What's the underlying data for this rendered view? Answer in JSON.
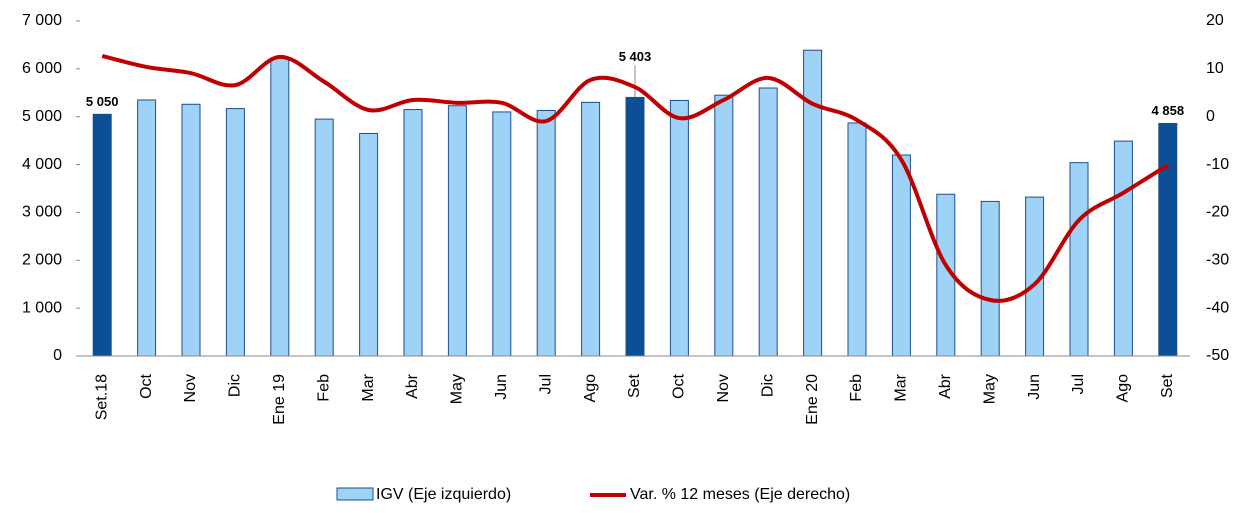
{
  "chart_data": {
    "type": "bar_line",
    "categories": [
      "Set.18",
      "Oct",
      "Nov",
      "Dic",
      "Ene 19",
      "Feb",
      "Mar",
      "Abr",
      "May",
      "Jun",
      "Jul",
      "Ago",
      "Set",
      "Oct",
      "Nov",
      "Dic",
      "Ene 20",
      "Feb",
      "Mar",
      "Abr",
      "May",
      "Jun",
      "Jul",
      "Ago",
      "Set"
    ],
    "series": [
      {
        "name": "IGV (Eje izquierdo)",
        "type": "bar",
        "color": "#9fd2f7",
        "highlight_color": "#0b4f96",
        "values": [
          5050,
          5350,
          5260,
          5170,
          6230,
          4950,
          4650,
          5150,
          5230,
          5100,
          5130,
          5300,
          5403,
          5340,
          5450,
          5600,
          6390,
          4870,
          4200,
          3380,
          3230,
          3320,
          4040,
          4490,
          4858
        ],
        "value_labels": [
          "5 050",
          null,
          null,
          null,
          null,
          null,
          null,
          null,
          null,
          null,
          null,
          null,
          "5 403",
          null,
          null,
          null,
          null,
          null,
          null,
          null,
          null,
          null,
          null,
          null,
          "4 858"
        ]
      },
      {
        "name": "Var. % 12 meses (Eje derecho)",
        "type": "line",
        "axis": "y2",
        "color": "#c00000",
        "values": [
          12.7,
          10.4,
          9.1,
          6.6,
          12.5,
          7.3,
          1.4,
          3.5,
          2.9,
          2.9,
          -0.9,
          7.7,
          6.2,
          -0.3,
          3.5,
          8.1,
          2.7,
          -0.7,
          -9,
          -31,
          -38.3,
          -35,
          -21.6,
          -15.9,
          -10.1
        ]
      }
    ],
    "ylim": [
      0,
      7000
    ],
    "yticks": [
      0,
      {
        "value": 1000,
        "label": "1 000"
      },
      {
        "value": 2000,
        "label": "2 000"
      },
      {
        "value": 3000,
        "label": "3 000"
      },
      {
        "value": 4000,
        "label": "4 000"
      },
      {
        "value": 5000,
        "label": "5 000"
      },
      {
        "value": 6000,
        "label": "6 000"
      },
      {
        "value": 7000,
        "label": "7 000"
      }
    ],
    "y2lim": [
      -50,
      20
    ],
    "y2ticks": [
      -50,
      -40,
      -30,
      -20,
      -10,
      0,
      10,
      20
    ]
  }
}
